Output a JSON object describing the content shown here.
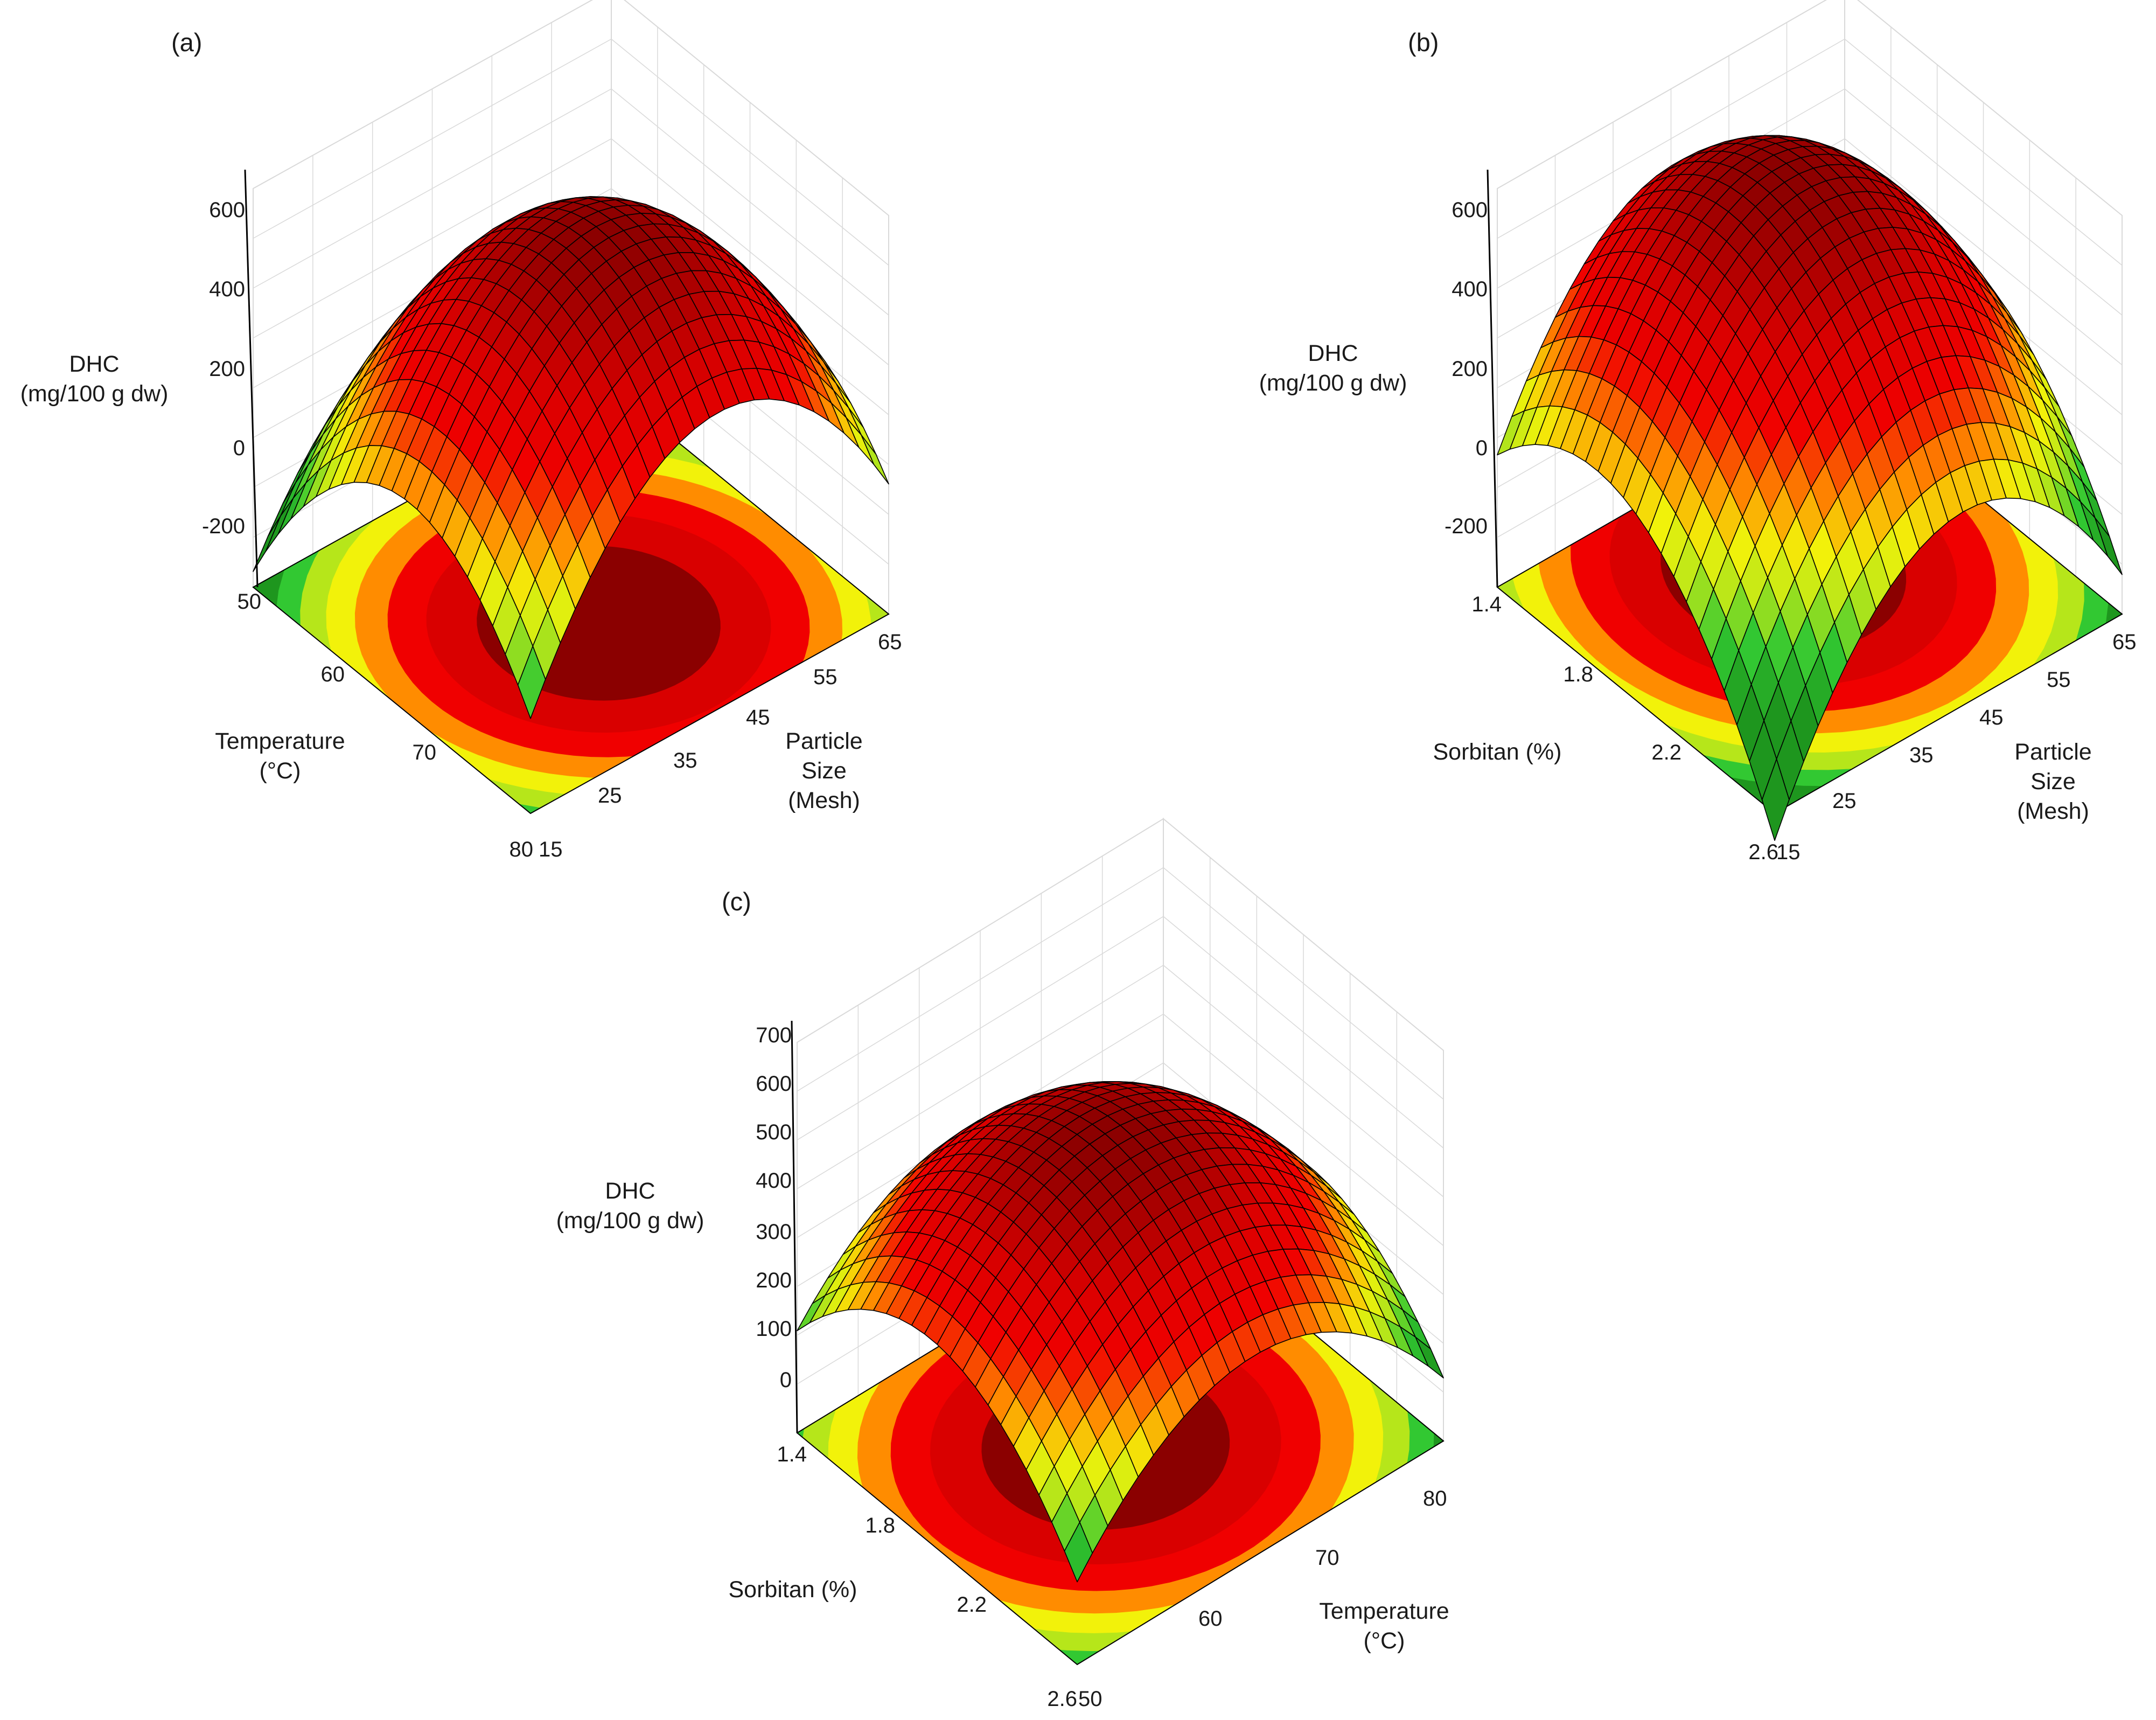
{
  "figure": {
    "panels": [
      "(a)",
      "(b)",
      "(c)"
    ]
  },
  "colors": {
    "dark_red": "#8b0000",
    "red": "#d90000",
    "bright_red": "#f00000",
    "orange": "#ff8c00",
    "yellow": "#f2f20a",
    "yellow_green": "#b6e61a",
    "green": "#32c832",
    "dark_green": "#1e961e",
    "mesh_line": "#000000",
    "grid_line": "#d9d9d9"
  },
  "chart_data": [
    {
      "type": "surface3d",
      "panel": "(a)",
      "zlabel": [
        "DHC",
        "(mg/100 g dw)"
      ],
      "zticks": [
        "600",
        "400",
        "200",
        "0",
        "-200"
      ],
      "zlim": [
        -300,
        700
      ],
      "x_axis": {
        "label": [
          "Particle",
          "Size",
          "(Mesh)"
        ],
        "ticks": [
          "15",
          "25",
          "35",
          "45",
          "55",
          "65"
        ],
        "range": [
          15,
          65
        ]
      },
      "y_axis": {
        "label": [
          "Temperature",
          "(°C)"
        ],
        "ticks": [
          "80",
          "70",
          "60",
          "50"
        ],
        "range": [
          50,
          80
        ]
      },
      "surface_range": [
        -120,
        690
      ],
      "optimum": {
        "particle_size": 40,
        "temperature": 62
      }
    },
    {
      "type": "surface3d",
      "panel": "(b)",
      "zlabel": [
        "DHC",
        "(mg/100 g dw)"
      ],
      "zticks": [
        "600",
        "400",
        "200",
        "0",
        "-200"
      ],
      "zlim": [
        -300,
        700
      ],
      "x_axis": {
        "label": [
          "Particle",
          "Size",
          "(Mesh)"
        ],
        "ticks": [
          "15",
          "25",
          "35",
          "45",
          "55",
          "65"
        ],
        "range": [
          15,
          65
        ]
      },
      "y_axis": {
        "label": [
          "Sorbitan (%)"
        ],
        "ticks": [
          "2.6",
          "2.2",
          "1.8",
          "1.4"
        ],
        "range": [
          1.4,
          2.6
        ]
      },
      "surface_range": [
        -120,
        700
      ],
      "optimum": {
        "particle_size": 40,
        "sorbitan": 1.9
      }
    },
    {
      "type": "surface3d",
      "panel": "(c)",
      "zlabel": [
        "DHC",
        "(mg/100 g dw)"
      ],
      "zticks": [
        "700",
        "600",
        "500",
        "400",
        "300",
        "200",
        "100",
        "0"
      ],
      "zlim": [
        -100,
        700
      ],
      "x_axis": {
        "label": [
          "Temperature",
          "(°C)"
        ],
        "ticks": [
          "50",
          "60",
          "70",
          "80"
        ],
        "range": [
          50,
          80
        ]
      },
      "y_axis": {
        "label": [
          "Sorbitan (%)"
        ],
        "ticks": [
          "2.6",
          "2.2",
          "1.8",
          "1.4"
        ],
        "range": [
          1.4,
          2.6
        ]
      },
      "surface_range": [
        60,
        540
      ],
      "optimum": {
        "temperature": 64,
        "sorbitan": 1.95
      }
    }
  ]
}
